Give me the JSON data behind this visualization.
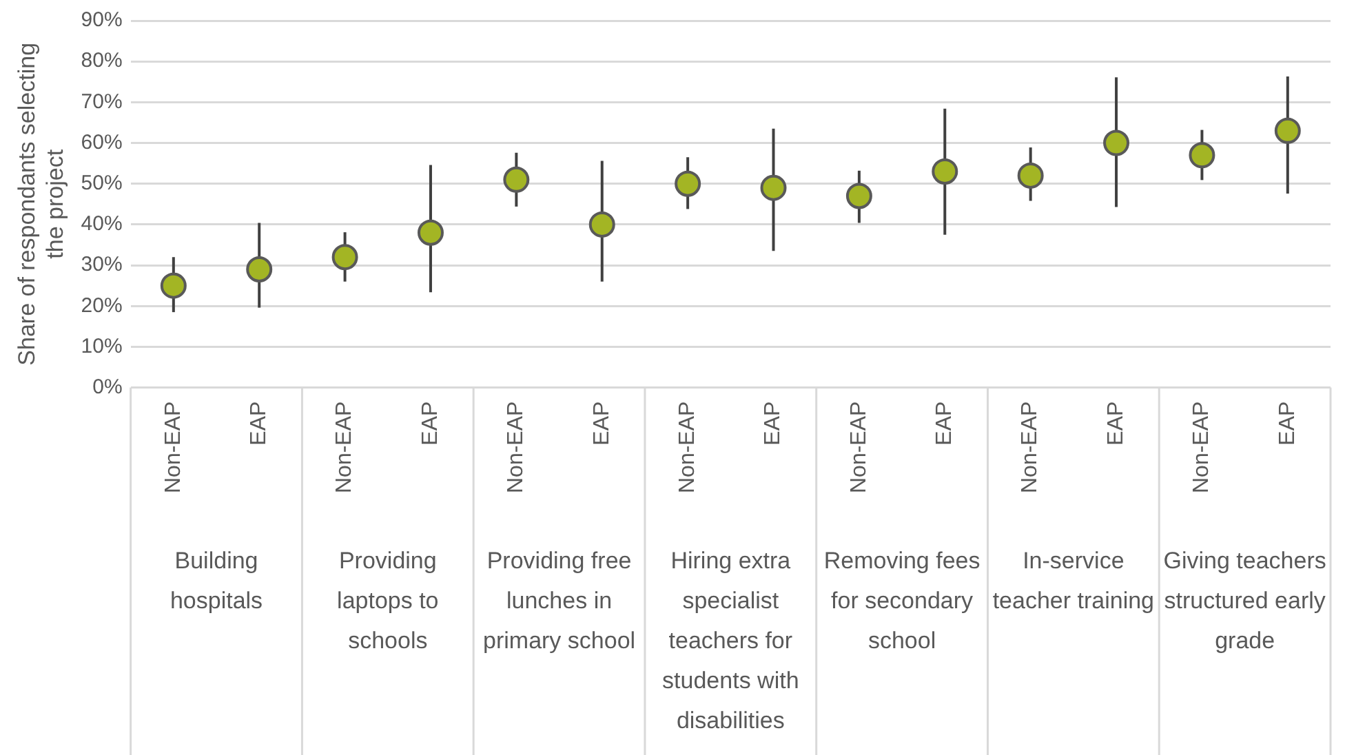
{
  "chart_data": {
    "type": "scatter",
    "ylabel": "Share of respondants selecting the project",
    "categories": [
      "Non-EAP",
      "EAP",
      "Non-EAP",
      "EAP",
      "Non-EAP",
      "EAP",
      "Non-EAP",
      "EAP",
      "Non-EAP",
      "EAP",
      "Non-EAP",
      "EAP",
      "Non-EAP",
      "EAP"
    ],
    "values": [
      25,
      29,
      32,
      38,
      51,
      40,
      50,
      49,
      47,
      53,
      52,
      60,
      57,
      63
    ],
    "errors": [
      [
        18.5,
        32
      ],
      [
        19.6,
        40.4
      ],
      [
        26,
        38.1
      ],
      [
        23.4,
        54.6
      ],
      [
        44.4,
        57.6
      ],
      [
        26,
        55.6
      ],
      [
        43.8,
        56.5
      ],
      [
        33.5,
        63.5
      ],
      [
        40.4,
        53.2
      ],
      [
        37.5,
        68.4
      ],
      [
        45.8,
        58.9
      ],
      [
        44.3,
        76.1
      ],
      [
        50.9,
        63.2
      ],
      [
        47.6,
        76.3
      ]
    ],
    "color": "#a3b524",
    "marker": "circle",
    "grid": "y",
    "ylim": [
      0,
      90
    ],
    "yticks": [
      {
        "value": 0,
        "label": "0%"
      },
      {
        "value": 10,
        "label": "10%"
      },
      {
        "value": 20,
        "label": "20%"
      },
      {
        "value": 30,
        "label": "30%"
      },
      {
        "value": 40,
        "label": "40%"
      },
      {
        "value": 50,
        "label": "50%"
      },
      {
        "value": 60,
        "label": "60%"
      },
      {
        "value": 70,
        "label": "70%"
      },
      {
        "value": 80,
        "label": "80%"
      },
      {
        "value": 90,
        "label": "90%"
      }
    ],
    "annotations": [
      "Building hospitals",
      "Providing laptops to schools",
      "Providing free lunches in primary school",
      "Hiring extra specialist teachers for students with disabilities",
      "Removing fees for secondary school",
      "In-service teacher training",
      "Giving teachers structured early grade"
    ]
  }
}
